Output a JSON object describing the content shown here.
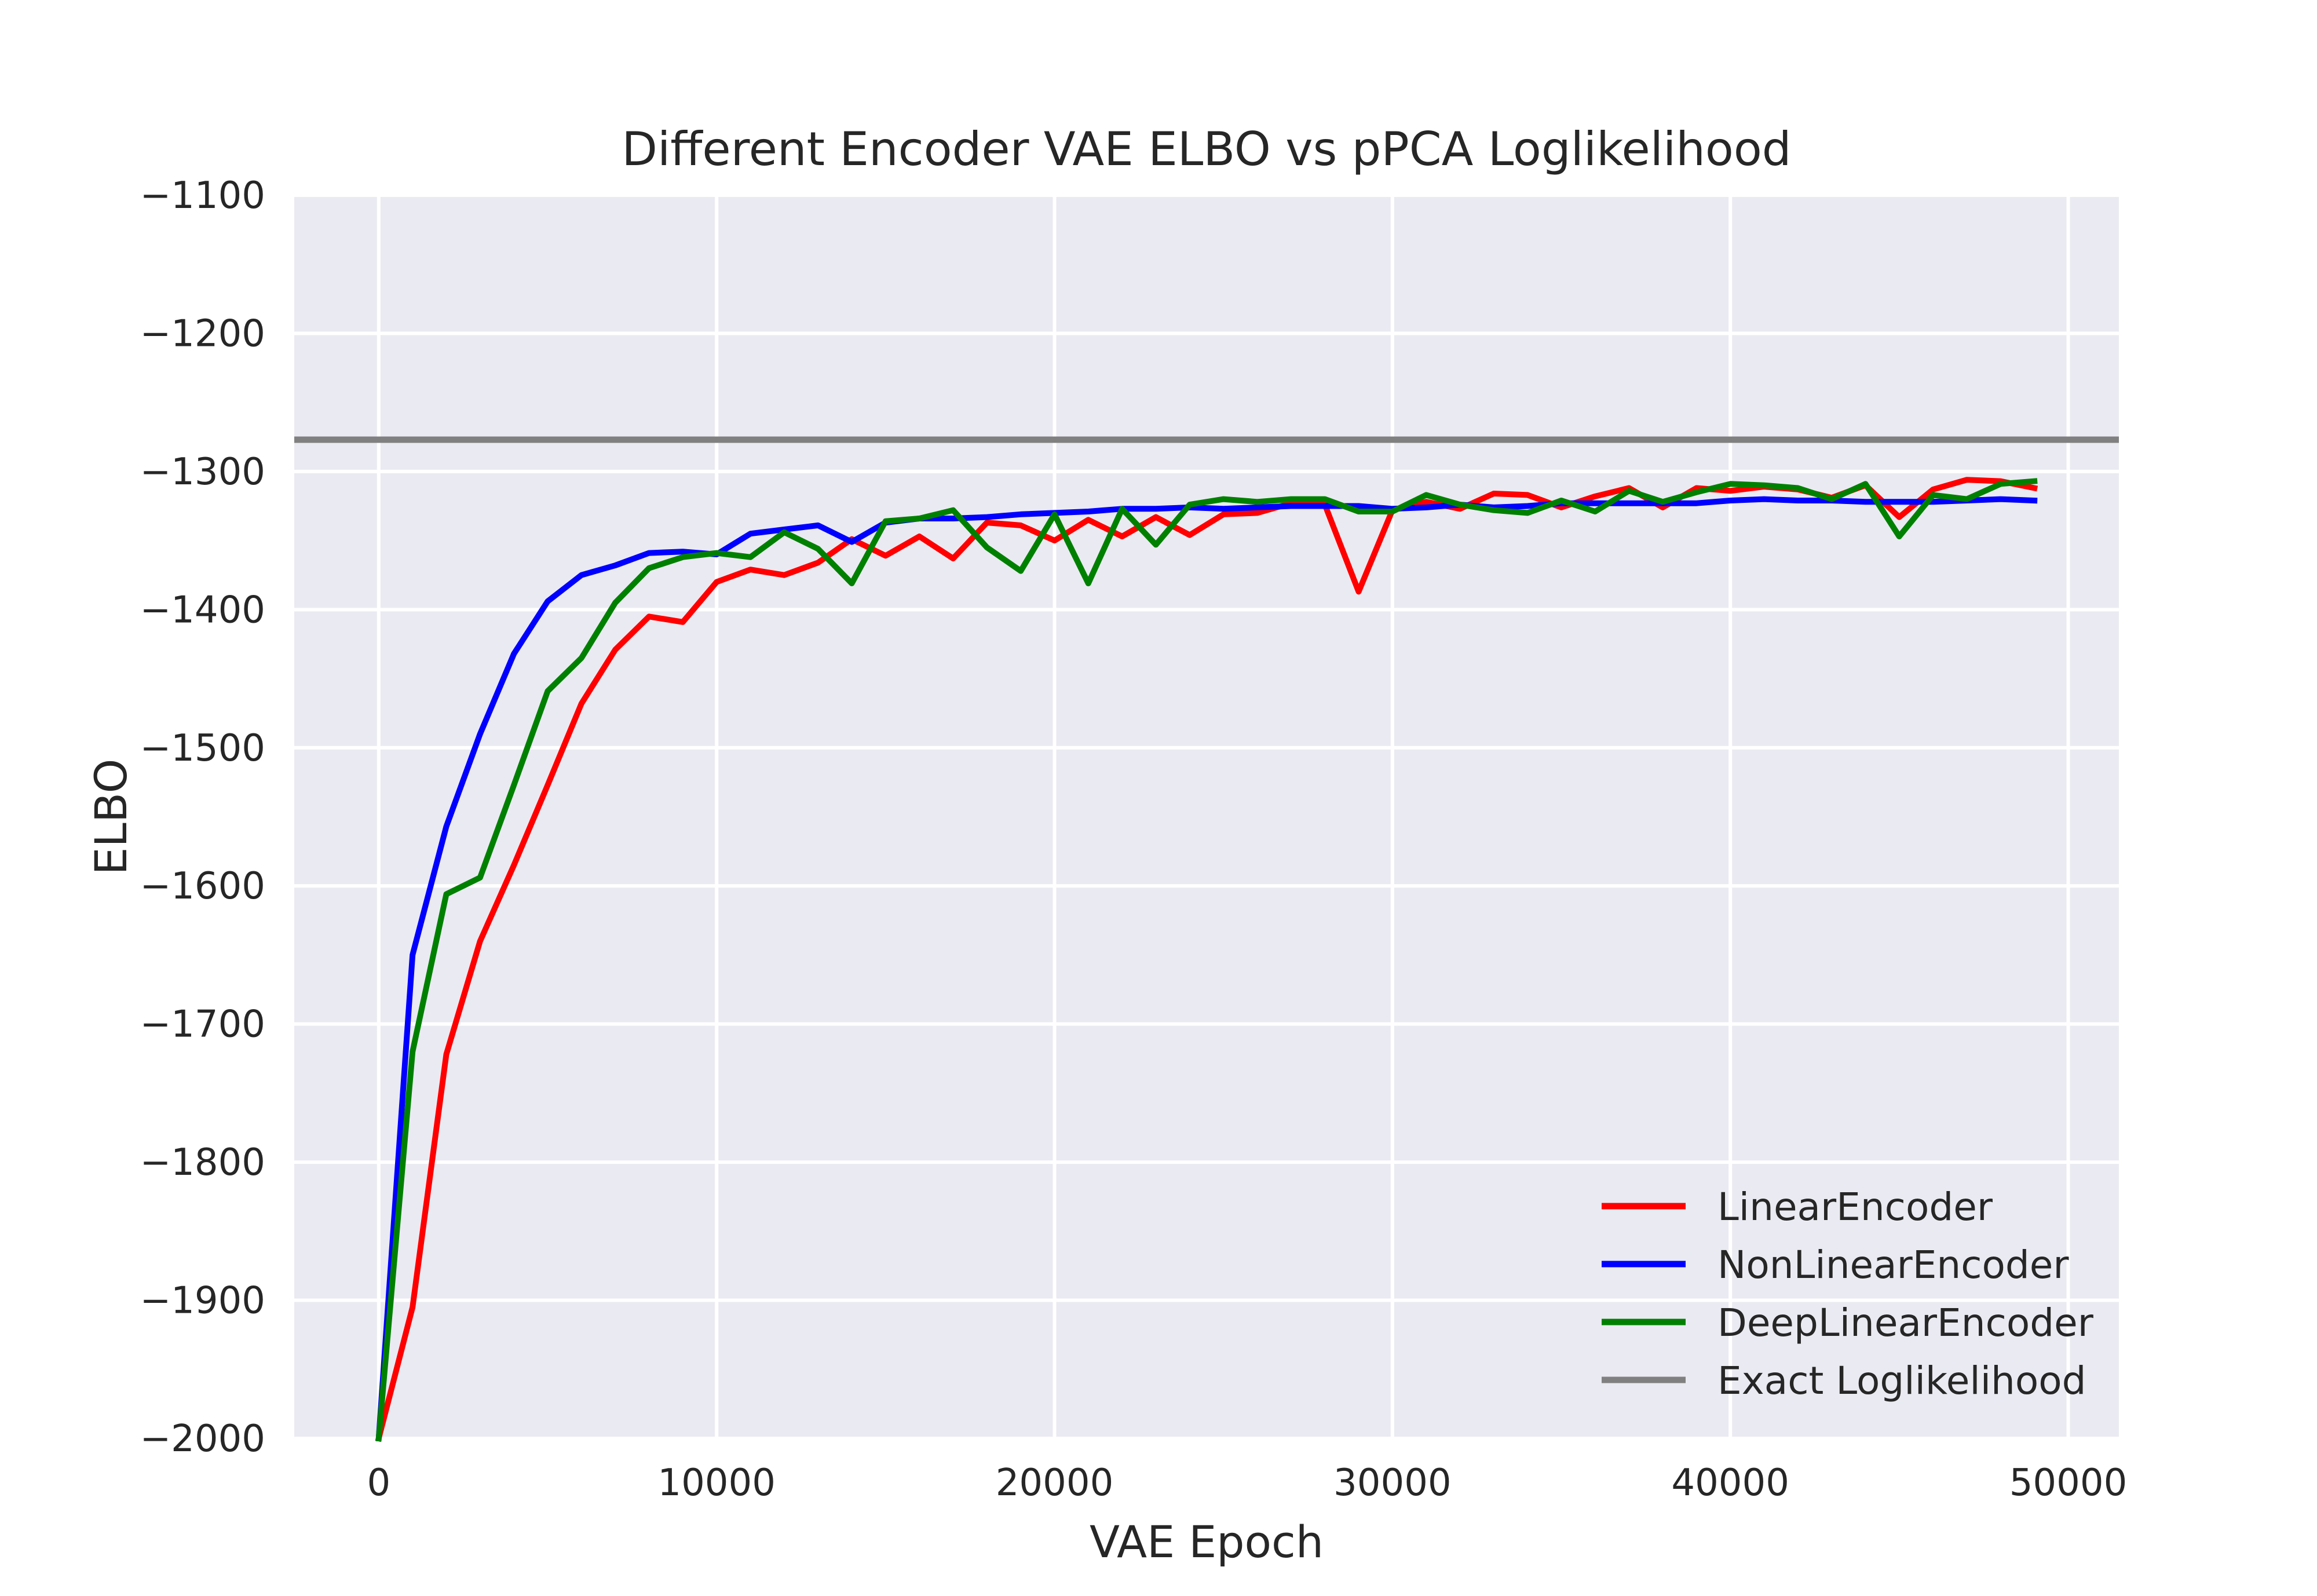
{
  "chart_data": {
    "type": "line",
    "title": "Different Encoder VAE ELBO vs pPCA Loglikelihood",
    "xlabel": "VAE Epoch",
    "ylabel": "ELBO",
    "xlim": [
      -2500,
      51500
    ],
    "ylim": [
      -2000,
      -1100
    ],
    "xticks": [
      0,
      10000,
      20000,
      30000,
      40000,
      50000
    ],
    "yticks": [
      -2000,
      -1900,
      -1800,
      -1700,
      -1600,
      -1500,
      -1400,
      -1300,
      -1200,
      -1100
    ],
    "xtick_labels": [
      "0",
      "10000",
      "20000",
      "30000",
      "40000",
      "50000"
    ],
    "ytick_labels": [
      "−2000",
      "−1900",
      "−1800",
      "−1700",
      "−1600",
      "−1500",
      "−1400",
      "−1300",
      "−1200",
      "−1100"
    ],
    "grid": true,
    "legend_position": "lower-right",
    "background_color": "#eaeaf2",
    "x": [
      0,
      1000,
      2000,
      3000,
      4000,
      5000,
      6000,
      7000,
      8000,
      9000,
      10000,
      11000,
      12000,
      13000,
      14000,
      15000,
      16000,
      17000,
      18000,
      19000,
      20000,
      21000,
      22000,
      23000,
      24000,
      25000,
      26000,
      27000,
      28000,
      29000,
      30000,
      31000,
      32000,
      33000,
      34000,
      35000,
      36000,
      37000,
      38000,
      39000,
      40000,
      41000,
      42000,
      43000,
      44000,
      45000,
      46000,
      47000,
      48000,
      49000
    ],
    "series": [
      {
        "name": "LinearEncoder",
        "color": "#ff0000",
        "values": [
          -2000,
          -1905,
          -1722,
          -1640,
          -1585,
          -1527,
          -1468,
          -1429,
          -1405,
          -1409,
          -1380,
          -1371,
          -1375,
          -1366,
          -1349,
          -1361,
          -1347,
          -1363,
          -1337,
          -1339,
          -1350,
          -1335,
          -1347,
          -1333,
          -1346,
          -1331,
          -1330,
          -1323,
          -1324,
          -1387,
          -1328,
          -1322,
          -1327,
          -1316,
          -1317,
          -1326,
          -1318,
          -1312,
          -1326,
          -1312,
          -1314,
          -1311,
          -1313,
          -1319,
          -1310,
          -1333,
          -1313,
          -1306,
          -1307,
          -1312
        ]
      },
      {
        "name": "NonLinearEncoder",
        "color": "#0000ff",
        "values": [
          -2000,
          -1650,
          -1557,
          -1490,
          -1432,
          -1394,
          -1375,
          -1368,
          -1359,
          -1358,
          -1360,
          -1345,
          -1342,
          -1339,
          -1351,
          -1337,
          -1334,
          -1334,
          -1333,
          -1331,
          -1330,
          -1329,
          -1327,
          -1327,
          -1326,
          -1327,
          -1326,
          -1325,
          -1325,
          -1325,
          -1327,
          -1326,
          -1324,
          -1326,
          -1325,
          -1323,
          -1323,
          -1323,
          -1323,
          -1323,
          -1321,
          -1320,
          -1321,
          -1321,
          -1322,
          -1322,
          -1322,
          -1321,
          -1320,
          -1321
        ]
      },
      {
        "name": "DeepLinearEncoder",
        "color": "#008000",
        "values": [
          -2000,
          -1720,
          -1606,
          -1594,
          -1527,
          -1459,
          -1435,
          -1395,
          -1370,
          -1362,
          -1359,
          -1362,
          -1344,
          -1356,
          -1381,
          -1336,
          -1334,
          -1328,
          -1355,
          -1372,
          -1331,
          -1381,
          -1327,
          -1353,
          -1324,
          -1320,
          -1322,
          -1320,
          -1320,
          -1329,
          -1329,
          -1317,
          -1324,
          -1328,
          -1330,
          -1321,
          -1329,
          -1314,
          -1322,
          -1315,
          -1309,
          -1310,
          -1312,
          -1320,
          -1309,
          -1347,
          -1317,
          -1320,
          -1309,
          -1307
        ]
      }
    ],
    "reference_line": {
      "name": "Exact Loglikelihood",
      "color": "#808080",
      "value": -1277
    }
  }
}
